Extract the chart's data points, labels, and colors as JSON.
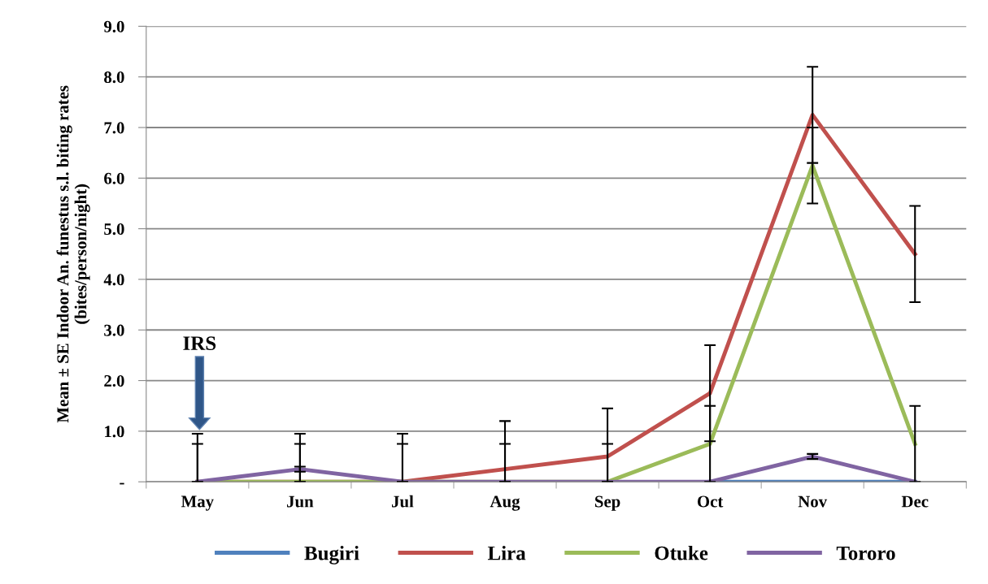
{
  "chart_data": {
    "type": "line",
    "ylabel": "Mean ± SE Indoor An. funestus s.l. biting rates\n(bites/person/night)",
    "categories": [
      "May",
      "Jun",
      "Jul",
      "Aug",
      "Sep",
      "Oct",
      "Nov",
      "Dec"
    ],
    "series": [
      {
        "name": "Bugiri",
        "color": "#4f81bd",
        "values": [
          null,
          null,
          null,
          null,
          null,
          0,
          0,
          0
        ]
      },
      {
        "name": "Lira",
        "color": "#c0504d",
        "values": [
          0,
          0,
          0,
          0.25,
          0.5,
          1.75,
          7.25,
          4.5
        ],
        "errors": [
          [
            0,
            0.95
          ],
          [
            0,
            0.95
          ],
          [
            0,
            0.95
          ],
          [
            0,
            1.2
          ],
          [
            0,
            1.45
          ],
          [
            0.8,
            2.7
          ],
          [
            6.3,
            8.2
          ],
          [
            3.55,
            5.45
          ]
        ]
      },
      {
        "name": "Otuke",
        "color": "#9bbb59",
        "values": [
          0,
          0,
          0,
          0,
          0,
          0.75,
          6.25,
          0.75
        ],
        "errors": [
          [
            0,
            0.75
          ],
          [
            0,
            0.75
          ],
          [
            0,
            0.75
          ],
          [
            0,
            0.75
          ],
          [
            0,
            0.75
          ],
          [
            0,
            1.5
          ],
          [
            5.5,
            7.0
          ],
          [
            0,
            1.5
          ]
        ]
      },
      {
        "name": "Tororo",
        "color": "#8064a2",
        "values": [
          0,
          0.25,
          0,
          0,
          0,
          0,
          0.5,
          0
        ],
        "errors": [
          null,
          [
            0.2,
            0.3
          ],
          null,
          null,
          null,
          null,
          [
            0.45,
            0.55
          ],
          null
        ]
      }
    ],
    "ylim": [
      0,
      9
    ],
    "yticks": [
      {
        "value": 0,
        "label": "-"
      },
      {
        "value": 1,
        "label": "1.0"
      },
      {
        "value": 2,
        "label": "2.0"
      },
      {
        "value": 3,
        "label": "3.0"
      },
      {
        "value": 4,
        "label": "4.0"
      },
      {
        "value": 5,
        "label": "5.0"
      },
      {
        "value": 6,
        "label": "6.0"
      },
      {
        "value": 7,
        "label": "7.0"
      },
      {
        "value": 8,
        "label": "8.0"
      },
      {
        "value": 9,
        "label": "9.0"
      }
    ],
    "annotations": [
      "IRS"
    ],
    "grid": "y",
    "legend": "bottom",
    "marker": "none",
    "line_style": "solid"
  }
}
